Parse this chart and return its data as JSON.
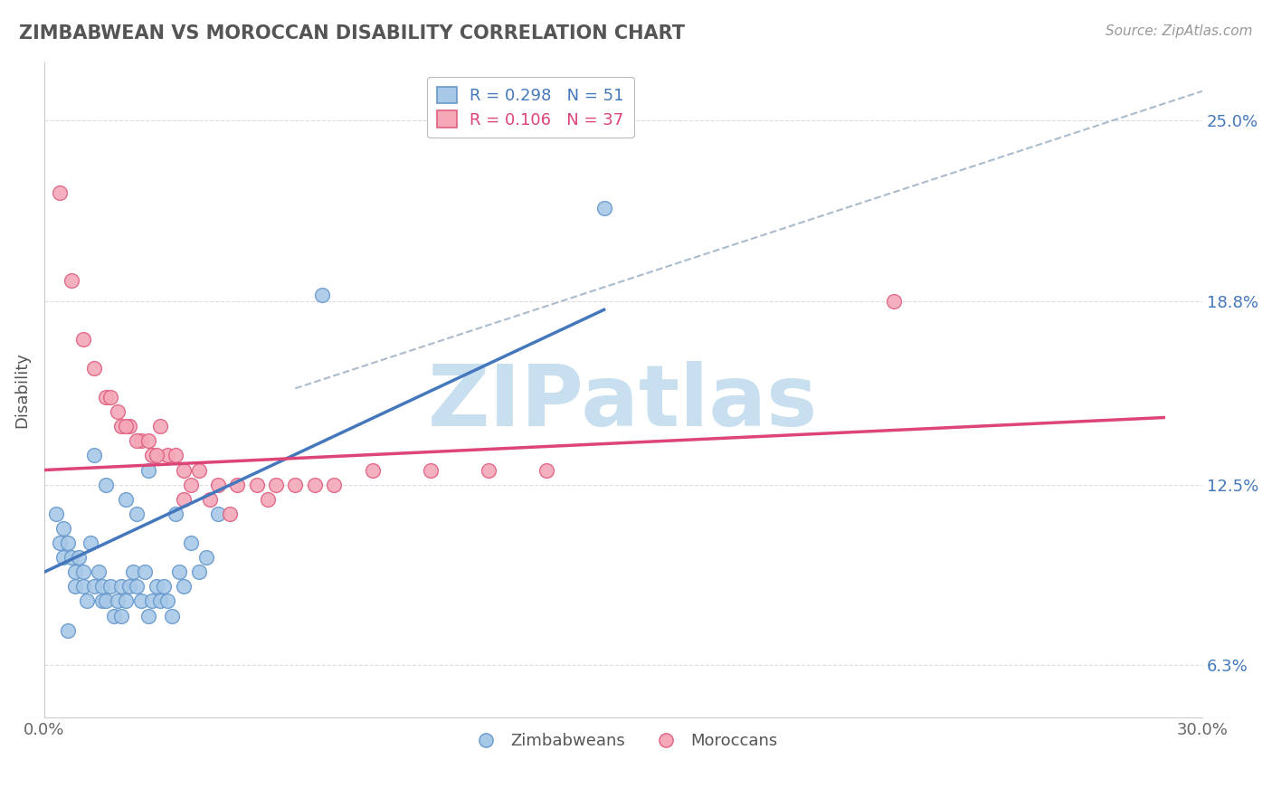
{
  "title": "ZIMBABWEAN VS MOROCCAN DISABILITY CORRELATION CHART",
  "source": "Source: ZipAtlas.com",
  "ylabel": "Disability",
  "xlim": [
    0.0,
    30.0
  ],
  "ylim": [
    4.5,
    27.0
  ],
  "xtick_positions": [
    0.0,
    5.0,
    10.0,
    15.0,
    20.0,
    25.0,
    30.0
  ],
  "xticklabels": [
    "0.0%",
    "",
    "",
    "",
    "",
    "",
    "30.0%"
  ],
  "ytick_positions": [
    6.3,
    12.5,
    18.8,
    25.0
  ],
  "ytick_labels": [
    "6.3%",
    "12.5%",
    "18.8%",
    "25.0%"
  ],
  "zimbabwean_color": "#a8c8e8",
  "zimbabwean_edge": "#6699cc",
  "moroccan_color": "#f4a8b8",
  "moroccan_edge": "#e06080",
  "trend_blue_color": "#4477bb",
  "trend_pink_color": "#dd4477",
  "trend_gray_color": "#aabbcc",
  "legend_text_blue": "R = 0.298   N = 51",
  "legend_text_pink": "R = 0.106   N = 37",
  "legend_label_blue": "Zimbabweans",
  "legend_label_pink": "Moroccans",
  "watermark": "ZIPatlas",
  "watermark_color": "#c8dff0",
  "background_color": "#ffffff",
  "grid_color": "#dddddd",
  "zimbabwean_x": [
    0.3,
    0.4,
    0.5,
    0.5,
    0.6,
    0.7,
    0.8,
    0.8,
    0.9,
    1.0,
    1.0,
    1.1,
    1.2,
    1.3,
    1.4,
    1.5,
    1.5,
    1.6,
    1.7,
    1.8,
    1.9,
    2.0,
    2.0,
    2.1,
    2.2,
    2.3,
    2.4,
    2.5,
    2.6,
    2.7,
    2.8,
    2.9,
    3.0,
    3.1,
    3.2,
    3.3,
    3.5,
    3.6,
    3.8,
    4.0,
    4.2,
    4.5,
    1.3,
    1.6,
    2.1,
    2.4,
    2.7,
    3.4,
    0.6,
    7.2,
    14.5
  ],
  "zimbabwean_y": [
    11.5,
    10.5,
    11.0,
    10.0,
    10.5,
    10.0,
    9.5,
    9.0,
    10.0,
    9.5,
    9.0,
    8.5,
    10.5,
    9.0,
    9.5,
    9.0,
    8.5,
    8.5,
    9.0,
    8.0,
    8.5,
    9.0,
    8.0,
    8.5,
    9.0,
    9.5,
    9.0,
    8.5,
    9.5,
    8.0,
    8.5,
    9.0,
    8.5,
    9.0,
    8.5,
    8.0,
    9.5,
    9.0,
    10.5,
    9.5,
    10.0,
    11.5,
    13.5,
    12.5,
    12.0,
    11.5,
    13.0,
    11.5,
    7.5,
    19.0,
    22.0
  ],
  "moroccan_x": [
    0.4,
    0.7,
    1.0,
    1.3,
    1.6,
    1.9,
    2.2,
    2.5,
    2.8,
    3.2,
    3.6,
    4.0,
    4.5,
    5.0,
    5.5,
    6.0,
    7.0,
    8.5,
    10.0,
    11.5,
    13.0,
    2.0,
    2.4,
    2.7,
    3.0,
    3.4,
    3.8,
    4.3,
    6.5,
    22.0,
    1.7,
    2.1,
    2.9,
    3.6,
    4.8,
    5.8,
    7.5
  ],
  "moroccan_y": [
    22.5,
    19.5,
    17.5,
    16.5,
    15.5,
    15.0,
    14.5,
    14.0,
    13.5,
    13.5,
    13.0,
    13.0,
    12.5,
    12.5,
    12.5,
    12.5,
    12.5,
    13.0,
    13.0,
    13.0,
    13.0,
    14.5,
    14.0,
    14.0,
    14.5,
    13.5,
    12.5,
    12.0,
    12.5,
    18.8,
    15.5,
    14.5,
    13.5,
    12.0,
    11.5,
    12.0,
    12.5
  ],
  "blue_line_x0": 0.0,
  "blue_line_x1": 14.5,
  "blue_line_y0": 9.5,
  "blue_line_y1": 18.5,
  "pink_line_x0": 0.0,
  "pink_line_x1": 29.0,
  "pink_line_y0": 13.0,
  "pink_line_y1": 14.8,
  "gray_line_x0": 6.5,
  "gray_line_x1": 30.0,
  "gray_line_y0": 15.8,
  "gray_line_y1": 26.0
}
